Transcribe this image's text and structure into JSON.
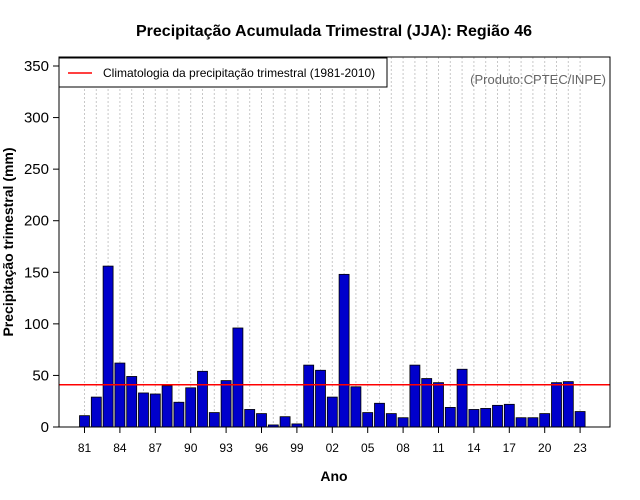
{
  "chart_data": {
    "type": "bar",
    "title": "Precipitação Acumulada Trimestral (JJA): Região 46",
    "xlabel": "Ano",
    "ylabel": "Precipitação trimestral (mm)",
    "credit": "(Produto:CPTEC/INPE)",
    "ylim": [
      0,
      355
    ],
    "yticks": [
      0,
      50,
      100,
      150,
      200,
      250,
      300,
      350
    ],
    "xtick_labels": [
      "81",
      "84",
      "87",
      "90",
      "93",
      "96",
      "99",
      "02",
      "05",
      "08",
      "11",
      "14",
      "17",
      "20",
      "23"
    ],
    "years": [
      1981,
      1982,
      1983,
      1984,
      1985,
      1986,
      1987,
      1988,
      1989,
      1990,
      1991,
      1992,
      1993,
      1994,
      1995,
      1996,
      1997,
      1998,
      1999,
      2000,
      2001,
      2002,
      2003,
      2004,
      2005,
      2006,
      2007,
      2008,
      2009,
      2010,
      2011,
      2012,
      2013,
      2014,
      2015,
      2016,
      2017,
      2018,
      2019,
      2020,
      2021,
      2022,
      2023
    ],
    "values": [
      11,
      29,
      156,
      62,
      49,
      33,
      32,
      40,
      24,
      38,
      54,
      14,
      45,
      96,
      17,
      13,
      2,
      10,
      3,
      60,
      55,
      29,
      148,
      39,
      14,
      23,
      13,
      9,
      60,
      47,
      43,
      19,
      56,
      17,
      18,
      21,
      22,
      9,
      9,
      13,
      43,
      44,
      15
    ],
    "climatology": {
      "label": "Climatologia da precipitação trimestral (1981-2010)",
      "value": 41,
      "color": "#ff0000"
    },
    "bar_color": "#0000cc",
    "grid": true,
    "legend_position": "top-left"
  }
}
